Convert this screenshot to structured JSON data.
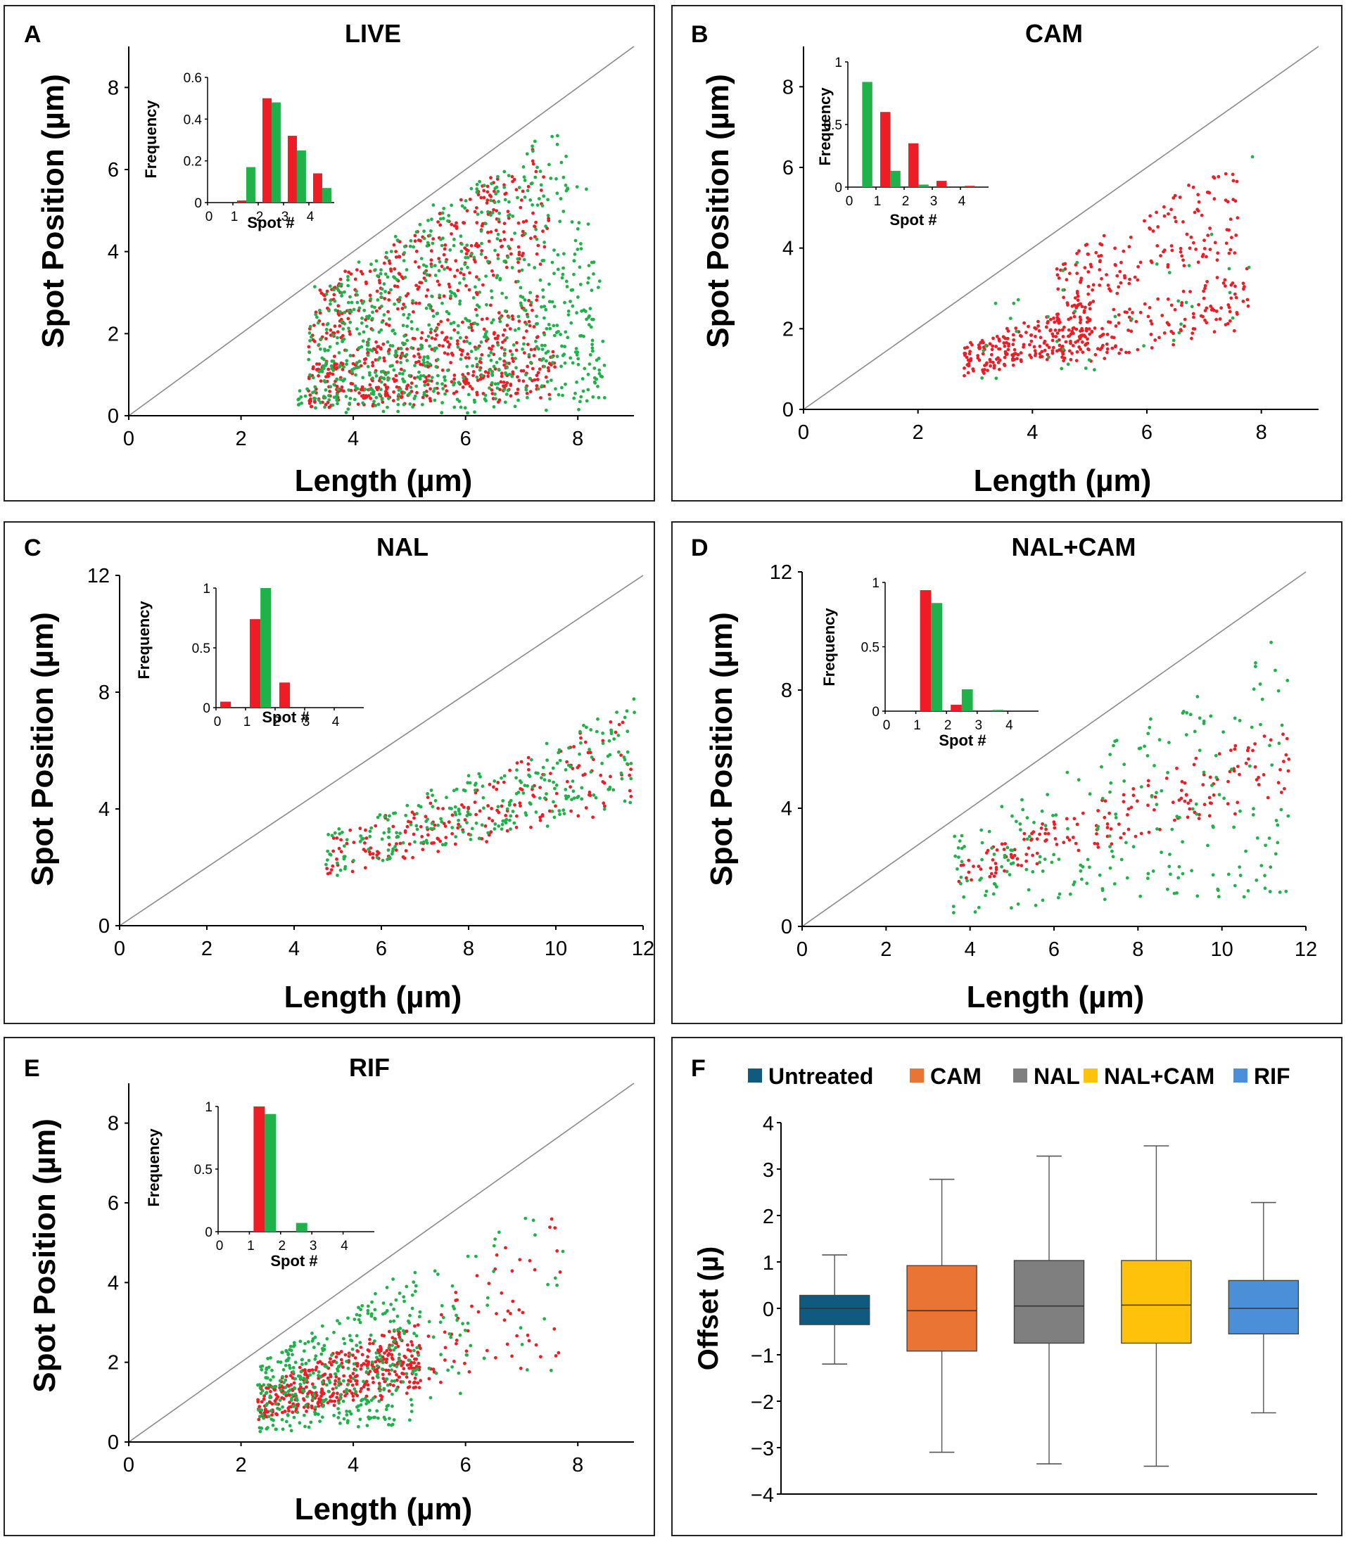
{
  "colors": {
    "red": "#ee1c25",
    "green": "#1fb24a",
    "diag": "#8a8a8a"
  },
  "chart_data": [
    {
      "panel": "A",
      "title": "LIVE",
      "type": "scatter",
      "xlabel": "Length (µm)",
      "ylabel": "Spot Position (µm)",
      "xlim": [
        0,
        9
      ],
      "ylim": [
        0,
        9
      ],
      "xticks": [
        "0",
        "2",
        "4",
        "6",
        "8"
      ],
      "xtick_values": [
        0,
        2,
        4,
        6,
        8
      ],
      "yticks": [
        "0",
        "2",
        "4",
        "6",
        "8"
      ],
      "ytick_values": [
        0,
        2,
        4,
        6,
        8
      ],
      "series": [
        {
          "name": "red spots",
          "color": "red",
          "clusters": [
            [
              3.2,
              7.6,
              0.07,
              0.2,
              0.25,
              240
            ],
            [
              3.2,
              7.4,
              0.22,
              0.4,
              0.3,
              220
            ],
            [
              3.2,
              7.5,
              0.5,
              0.72,
              0.3,
              200
            ],
            [
              3.3,
              7.4,
              0.76,
              0.88,
              0.3,
              120
            ]
          ]
        },
        {
          "name": "green spots",
          "color": "green",
          "clusters": [
            [
              3.0,
              8.5,
              0.03,
              0.22,
              0.35,
              260
            ],
            [
              3.2,
              8.4,
              0.22,
              0.45,
              0.35,
              240
            ],
            [
              3.2,
              8.2,
              0.45,
              0.72,
              0.35,
              200
            ],
            [
              3.3,
              7.8,
              0.72,
              0.92,
              0.3,
              130
            ]
          ]
        }
      ],
      "inset": {
        "xlabel": "Spot #",
        "ylabel": "Frequency",
        "categories": [
          "0",
          "1",
          "2",
          "3",
          "4"
        ],
        "ylim": [
          0,
          0.6
        ],
        "yticks": [
          "0",
          "0.2",
          "0.4",
          "0.6"
        ],
        "ytick_values": [
          0,
          0.2,
          0.4,
          0.6
        ],
        "series": [
          {
            "name": "red",
            "color": "red",
            "values": [
              0.0,
              0.01,
              0.5,
              0.32,
              0.14
            ]
          },
          {
            "name": "green",
            "color": "green",
            "values": [
              0.0,
              0.17,
              0.48,
              0.25,
              0.07
            ]
          }
        ]
      }
    },
    {
      "panel": "B",
      "title": "CAM",
      "type": "scatter",
      "xlabel": "Length (µm)",
      "ylabel": "Spot Position (µm)",
      "xlim": [
        0,
        9
      ],
      "ylim": [
        0,
        9
      ],
      "xticks": [
        "0",
        "2",
        "4",
        "6",
        "8"
      ],
      "xtick_values": [
        0,
        2,
        4,
        6,
        8
      ],
      "yticks": [
        "0",
        "2",
        "4",
        "6",
        "8"
      ],
      "ytick_values": [
        0,
        2,
        4,
        6,
        8
      ],
      "series": [
        {
          "name": "red spots",
          "color": "red",
          "clusters": [
            [
              2.8,
              5.0,
              0.3,
              0.55,
              0.2,
              230
            ],
            [
              4.5,
              7.8,
              0.25,
              0.45,
              0.2,
              150
            ],
            [
              4.4,
              7.6,
              0.5,
              0.82,
              0.2,
              160
            ]
          ]
        },
        {
          "name": "green spots",
          "color": "green",
          "clusters": [
            [
              3.0,
              7.9,
              0.2,
              0.8,
              0.25,
              40
            ]
          ]
        }
      ],
      "inset": {
        "xlabel": "Spot #",
        "ylabel": "Frequency",
        "categories": [
          "0",
          "1",
          "2",
          "3",
          "4"
        ],
        "ylim": [
          0,
          1
        ],
        "yticks": [
          "0",
          "0.5",
          "1"
        ],
        "ytick_values": [
          0,
          0.5,
          1
        ],
        "series": [
          {
            "name": "red",
            "color": "red",
            "values": [
              0.0,
              0.6,
              0.35,
              0.05,
              0.01
            ]
          },
          {
            "name": "green",
            "color": "green",
            "values": [
              0.84,
              0.13,
              0.02,
              0.0,
              0.0
            ]
          }
        ]
      }
    },
    {
      "panel": "C",
      "title": "NAL",
      "type": "scatter",
      "xlabel": "Length (µm)",
      "ylabel": "Spot Position (µm)",
      "xlim": [
        0,
        12
      ],
      "ylim": [
        0,
        12
      ],
      "xticks": [
        "0",
        "2",
        "4",
        "6",
        "8",
        "10",
        "12"
      ],
      "xtick_values": [
        0,
        2,
        4,
        6,
        8,
        10,
        12
      ],
      "yticks": [
        "0",
        "4",
        "8",
        "12"
      ],
      "ytick_values": [
        0,
        4,
        8,
        12
      ],
      "series": [
        {
          "name": "red spots",
          "color": "red",
          "clusters": [
            [
              4.7,
              11.8,
              0.35,
              0.62,
              0.1,
              200
            ]
          ]
        },
        {
          "name": "green spots",
          "color": "green",
          "clusters": [
            [
              4.7,
              11.8,
              0.35,
              0.65,
              0.12,
              260
            ]
          ]
        }
      ],
      "inset": {
        "xlabel": "Spot #",
        "ylabel": "Frequency",
        "categories": [
          "0",
          "1",
          "2",
          "3",
          "4"
        ],
        "ylim": [
          0,
          1
        ],
        "yticks": [
          "0",
          "0.5",
          "1"
        ],
        "ytick_values": [
          0,
          0.5,
          1
        ],
        "series": [
          {
            "name": "red",
            "color": "red",
            "values": [
              0.05,
              0.74,
              0.21,
              0.0,
              0.0
            ]
          },
          {
            "name": "green",
            "color": "green",
            "values": [
              0.0,
              1.0,
              0.0,
              0.0,
              0.0
            ]
          }
        ]
      }
    },
    {
      "panel": "D",
      "title": "NAL+CAM",
      "type": "scatter",
      "xlabel": "Length (µm)",
      "ylabel": "Spot Position (µm)",
      "xlim": [
        0,
        12
      ],
      "ylim": [
        0,
        12
      ],
      "xticks": [
        "0",
        "2",
        "4",
        "6",
        "8",
        "10",
        "12"
      ],
      "xtick_values": [
        0,
        2,
        4,
        6,
        8,
        10,
        12
      ],
      "yticks": [
        "0",
        "4",
        "8",
        "12"
      ],
      "ytick_values": [
        0,
        4,
        8,
        12
      ],
      "series": [
        {
          "name": "red spots",
          "color": "red",
          "clusters": [
            [
              3.6,
              11.6,
              0.38,
              0.6,
              0.1,
              180
            ]
          ]
        },
        {
          "name": "green spots",
          "color": "green",
          "clusters": [
            [
              3.6,
              11.6,
              0.1,
              0.85,
              0.15,
              230
            ]
          ]
        }
      ],
      "inset": {
        "xlabel": "Spot #",
        "ylabel": "Frequency",
        "categories": [
          "0",
          "1",
          "2",
          "3",
          "4"
        ],
        "ylim": [
          0,
          1
        ],
        "yticks": [
          "0",
          "0.5",
          "1"
        ],
        "ytick_values": [
          0,
          0.5,
          1
        ],
        "series": [
          {
            "name": "red",
            "color": "red",
            "values": [
              0.0,
              0.94,
              0.05,
              0.0,
              0.0
            ]
          },
          {
            "name": "green",
            "color": "green",
            "values": [
              0.0,
              0.84,
              0.17,
              0.01,
              0.0
            ]
          }
        ]
      }
    },
    {
      "panel": "E",
      "title": "RIF",
      "type": "scatter",
      "xlabel": "Length (µm)",
      "ylabel": "Spot Position (µm)",
      "xlim": [
        0,
        9
      ],
      "ylim": [
        0,
        9
      ],
      "xticks": [
        "0",
        "2",
        "4",
        "6",
        "8"
      ],
      "xtick_values": [
        0,
        2,
        4,
        6,
        8
      ],
      "yticks": [
        "0",
        "2",
        "4",
        "6",
        "8"
      ],
      "ytick_values": [
        0,
        2,
        4,
        6,
        8
      ],
      "series": [
        {
          "name": "red spots",
          "color": "red",
          "clusters": [
            [
              2.3,
              5.2,
              0.25,
              0.6,
              0.15,
              420
            ],
            [
              5.2,
              7.8,
              0.2,
              0.75,
              0.15,
              60
            ]
          ]
        },
        {
          "name": "green spots",
          "color": "green",
          "clusters": [
            [
              2.3,
              5.2,
              0.1,
              0.85,
              0.15,
              380
            ],
            [
              5.2,
              7.8,
              0.2,
              0.8,
              0.15,
              50
            ]
          ]
        }
      ],
      "inset": {
        "xlabel": "Spot #",
        "ylabel": "Frequency",
        "categories": [
          "0",
          "1",
          "2",
          "3",
          "4"
        ],
        "ylim": [
          0,
          1
        ],
        "yticks": [
          "0",
          "0.5",
          "1"
        ],
        "ytick_values": [
          0,
          0.5,
          1
        ],
        "series": [
          {
            "name": "red",
            "color": "red",
            "values": [
              0.0,
              1.0,
              0.0,
              0.0,
              0.0
            ]
          },
          {
            "name": "green",
            "color": "green",
            "values": [
              0.0,
              0.94,
              0.07,
              0.0,
              0.0
            ]
          }
        ]
      }
    },
    {
      "panel": "F",
      "title": "",
      "type": "box",
      "ylabel": "Offset (µ)",
      "ylim": [
        -4,
        4
      ],
      "yticks": [
        "−4",
        "−3",
        "−2",
        "−1",
        "0",
        "1",
        "2",
        "3",
        "4"
      ],
      "ytick_values": [
        -4,
        -3,
        -2,
        -1,
        0,
        1,
        2,
        3,
        4
      ],
      "boxes": [
        {
          "name": "Untreated",
          "color": "#0f5a7e",
          "whislo": -1.2,
          "q1": -0.35,
          "med": 0.0,
          "q3": 0.28,
          "whishi": 1.15
        },
        {
          "name": "CAM",
          "color": "#ea7434",
          "whislo": -3.1,
          "q1": -0.92,
          "med": -0.05,
          "q3": 0.92,
          "whishi": 2.78
        },
        {
          "name": "NAL",
          "color": "#7f7f7f",
          "whislo": -3.35,
          "q1": -0.75,
          "med": 0.05,
          "q3": 1.03,
          "whishi": 3.28
        },
        {
          "name": "NAL+CAM",
          "color": "#fec20a",
          "whislo": -3.4,
          "q1": -0.75,
          "med": 0.07,
          "q3": 1.03,
          "whishi": 3.5
        },
        {
          "name": "RIF",
          "color": "#4b8fd9",
          "whislo": -2.25,
          "q1": -0.55,
          "med": 0.0,
          "q3": 0.6,
          "whishi": 2.28
        }
      ]
    }
  ]
}
